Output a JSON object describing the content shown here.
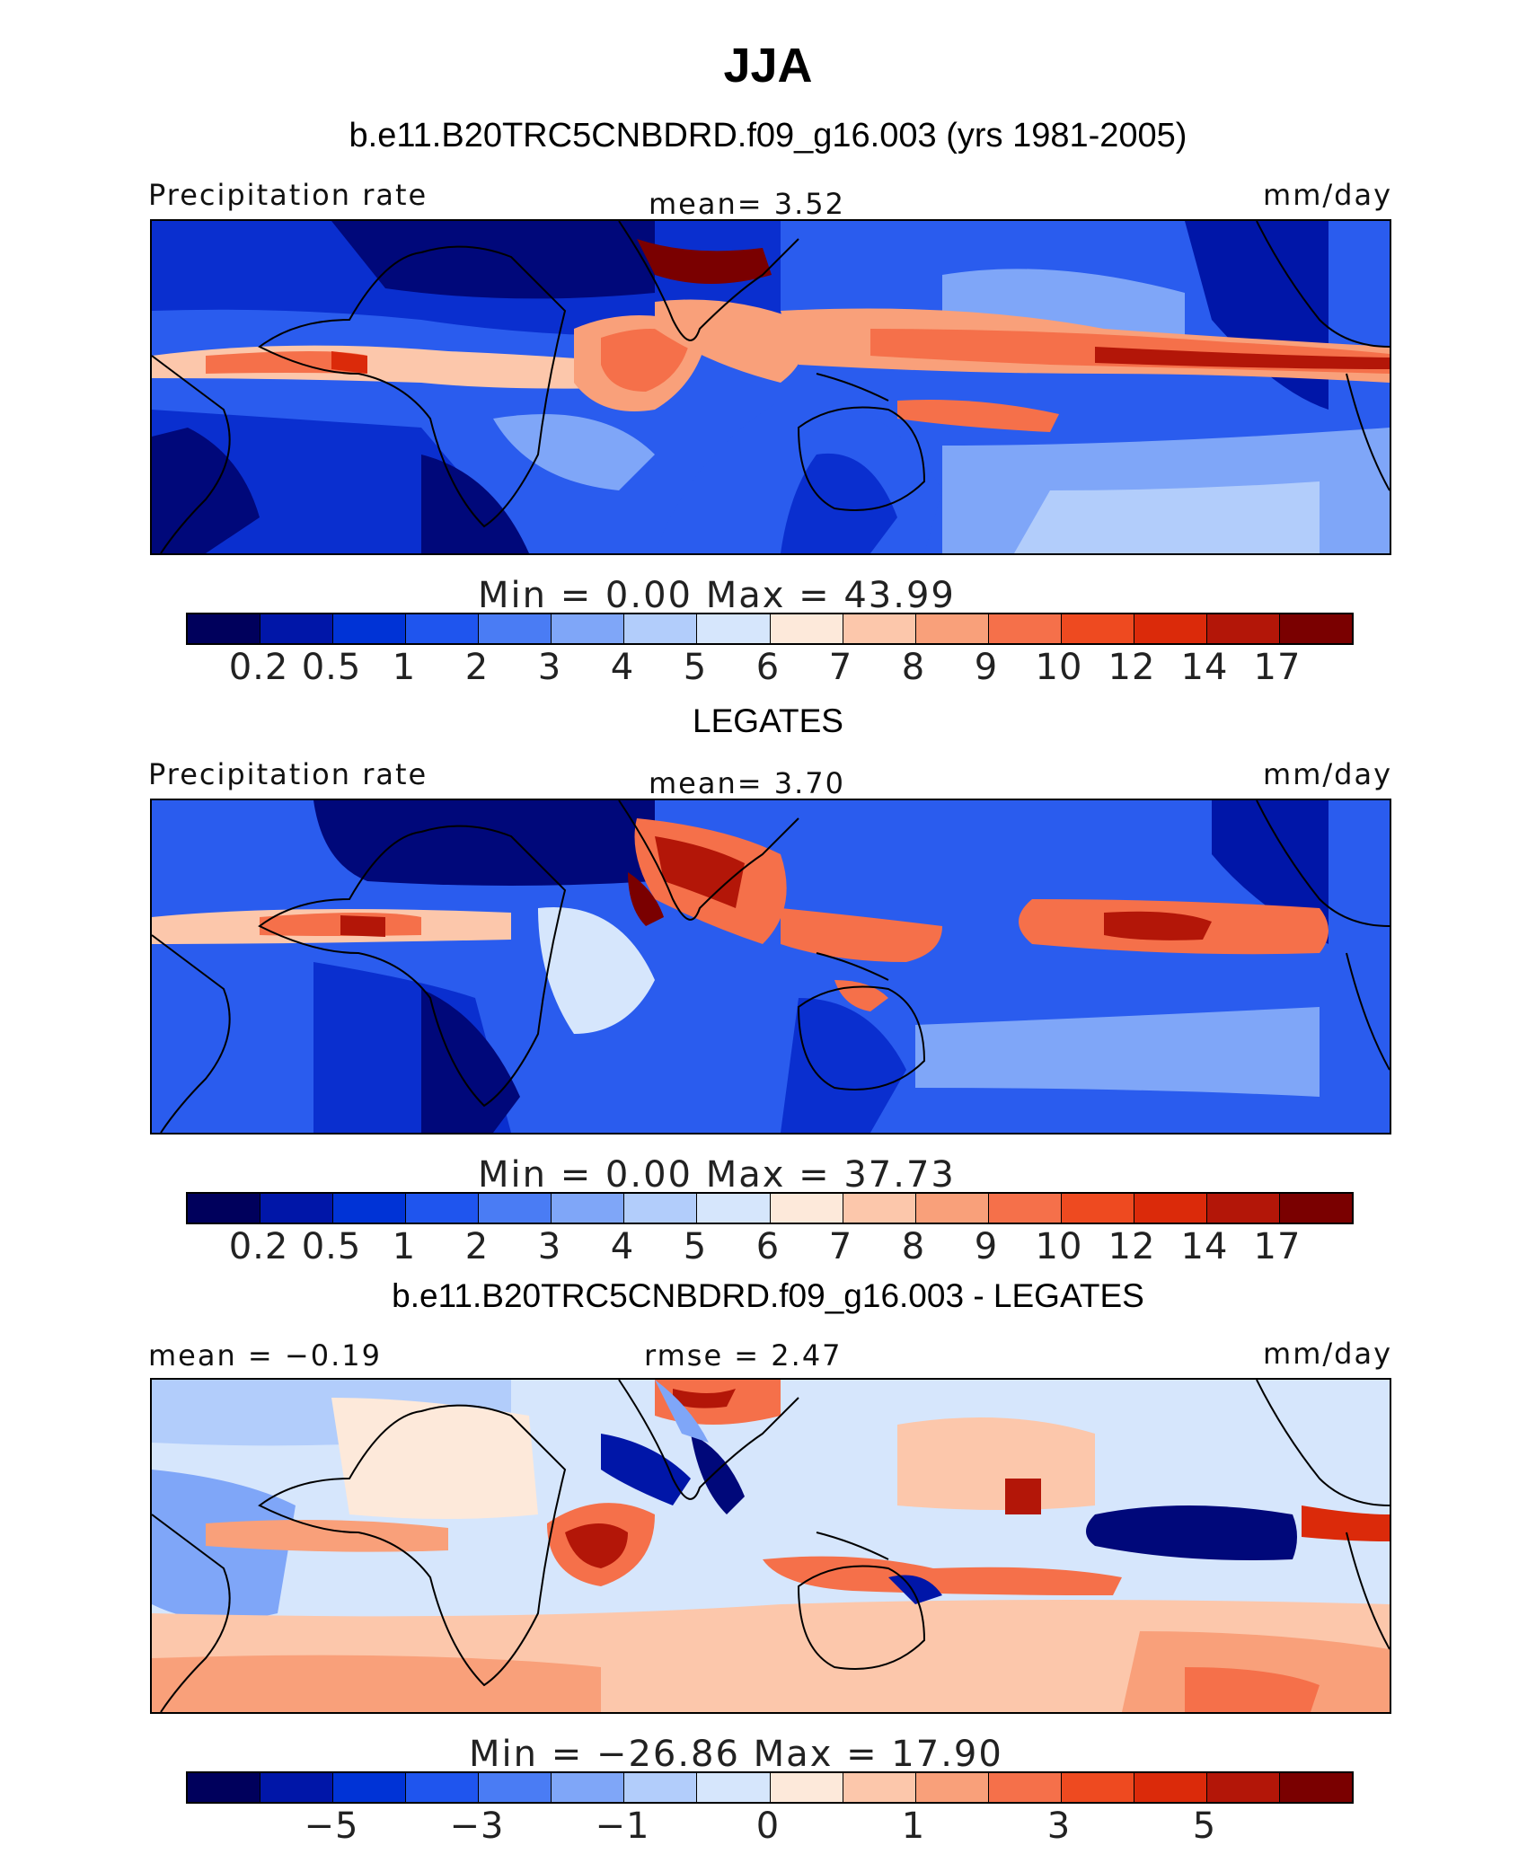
{
  "title": "JJA",
  "subtitle": "b.e11.B20TRC5CNBDRD.f09_g16.003 (yrs 1981-2005)",
  "panels": [
    {
      "left_label": "Precipitation rate",
      "center_label": "mean=    3.52",
      "right_label": "mm/day",
      "minmax": "Min  =    0.00  Max  =   43.99",
      "tick_labels": [
        "0.2",
        "0.5",
        "1",
        "2",
        "3",
        "4",
        "5",
        "6",
        "7",
        "8",
        "9",
        "10",
        "12",
        "14",
        "17"
      ],
      "after_title": "LEGATES"
    },
    {
      "left_label": "Precipitation rate",
      "center_label": "mean=    3.70",
      "right_label": "mm/day",
      "minmax": "Min  =    0.00  Max  =   37.73",
      "tick_labels": [
        "0.2",
        "0.5",
        "1",
        "2",
        "3",
        "4",
        "5",
        "6",
        "7",
        "8",
        "9",
        "10",
        "12",
        "14",
        "17"
      ],
      "after_title": "b.e11.B20TRC5CNBDRD.f09_g16.003 - LEGATES"
    },
    {
      "left_label": "mean  =   −0.19",
      "center_label": "rmse  =    2.47",
      "right_label": "mm/day",
      "minmax": "Min  = −26.86  Max  =   17.90",
      "tick_labels": [
        "−5",
        "−3",
        "−1",
        "0",
        "1",
        "3",
        "5"
      ]
    }
  ],
  "colors": {
    "abs_scale": [
      "#00005c",
      "#0016a8",
      "#0033d6",
      "#1f55ee",
      "#4a7cf4",
      "#7fa6f8",
      "#b2cdfb",
      "#d6e6fc",
      "#fde9da",
      "#fcc7ab",
      "#f9a07a",
      "#f5704a",
      "#ee4a20",
      "#db2a0a",
      "#b31608",
      "#7a0000"
    ],
    "diff_scale": [
      "#00005c",
      "#0016a8",
      "#0033d6",
      "#1f55ee",
      "#4a7cf4",
      "#7fa6f8",
      "#b2cdfb",
      "#d6e6fc",
      "#fde9da",
      "#fcc7ab",
      "#f9a07a",
      "#f5704a",
      "#ee4a20",
      "#db2a0a",
      "#b31608",
      "#7a0000"
    ]
  }
}
